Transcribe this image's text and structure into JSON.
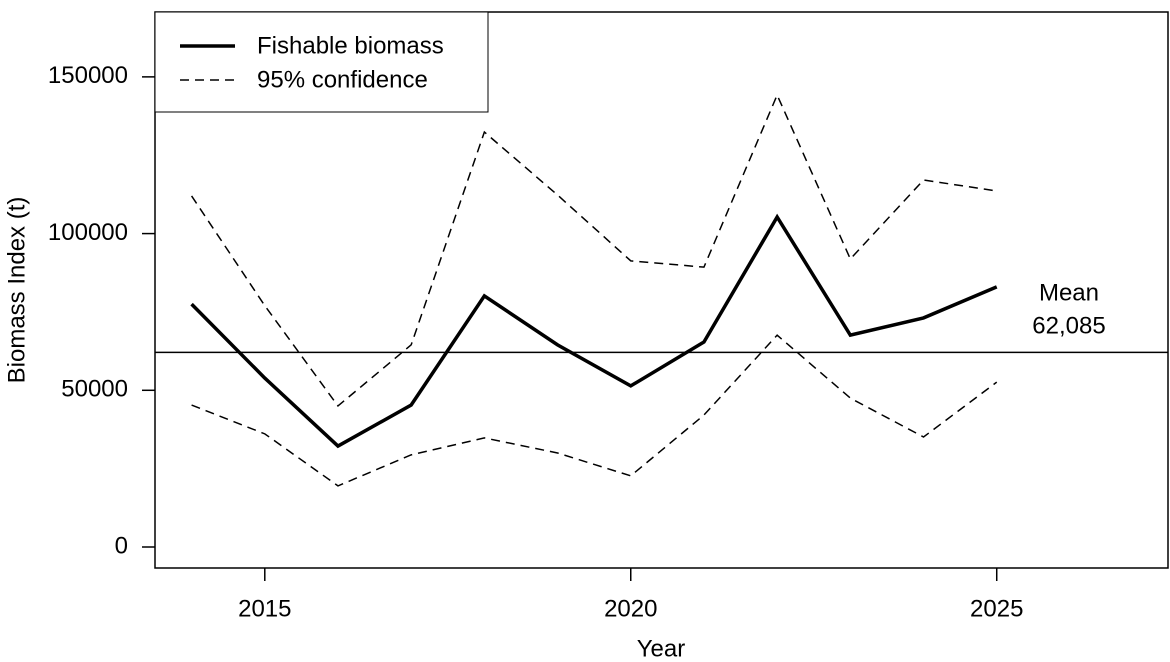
{
  "chart_data": {
    "type": "line",
    "x_label": "Year",
    "y_label": "Biomass Index (t)",
    "x": [
      2014,
      2015,
      2016,
      2017,
      2018,
      2019,
      2020,
      2021,
      2022,
      2023,
      2024,
      2025
    ],
    "series": [
      {
        "name": "Fishable biomass",
        "color": "#000000",
        "values": [
          77500,
          53900,
          32200,
          45300,
          80100,
          64500,
          51400,
          65400,
          105300,
          67600,
          73100,
          83000
        ]
      }
    ],
    "confidence": {
      "name": "95% confidence",
      "color": "#000000",
      "upper": [
        112000,
        77000,
        45000,
        64500,
        132400,
        112300,
        91300,
        89300,
        144200,
        91900,
        117100,
        113600
      ],
      "lower": [
        45300,
        36100,
        19500,
        29400,
        34800,
        30000,
        22700,
        42100,
        67600,
        47500,
        35100,
        52600
      ]
    },
    "reference_line": {
      "value": 62085,
      "label": "Mean",
      "value_label": "62,085"
    },
    "xlim": [
      2013.5,
      2027.34
    ],
    "ylim": [
      -6700,
      170700
    ],
    "xticks": [
      2015,
      2020,
      2025
    ],
    "yticks": [
      0,
      50000,
      100000,
      150000
    ],
    "legend": "top-left"
  }
}
